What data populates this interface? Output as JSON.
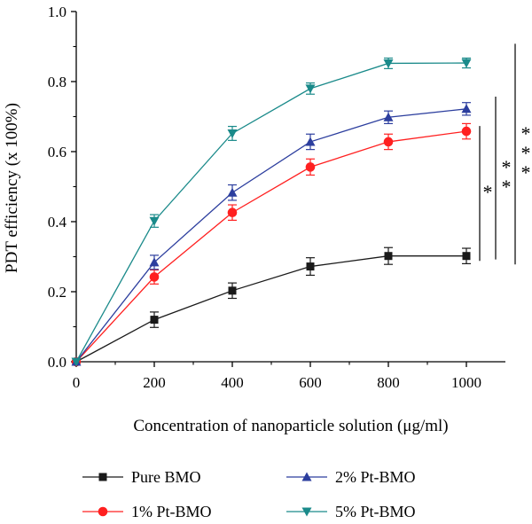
{
  "chart_data": {
    "type": "line",
    "title": "",
    "xlabel": "Concentration of nanoparticle solution (μg/ml)",
    "ylabel": "PDT efficiency (x 100%)",
    "x": [
      0,
      200,
      400,
      600,
      800,
      1000
    ],
    "x_ticks": [
      "0",
      "200",
      "400",
      "600",
      "800",
      "1000"
    ],
    "y_ticks": [
      "0.0",
      "0.2",
      "0.4",
      "0.6",
      "0.8",
      "1.0"
    ],
    "xlim": [
      0,
      1100
    ],
    "ylim": [
      0,
      1.0
    ],
    "grid": false,
    "legend_position": "bottom",
    "series": [
      {
        "name": "Pure BMO",
        "color": "#1a1a1a",
        "marker": "square",
        "values": [
          0.0,
          0.12,
          0.203,
          0.272,
          0.302,
          0.302
        ],
        "errors": [
          0.0,
          0.022,
          0.022,
          0.025,
          0.024,
          0.022
        ]
      },
      {
        "name": "1% Pt-BMO",
        "color": "#ff2020",
        "marker": "circle",
        "values": [
          0.0,
          0.242,
          0.426,
          0.556,
          0.628,
          0.658
        ],
        "errors": [
          0.0,
          0.02,
          0.022,
          0.023,
          0.022,
          0.022
        ]
      },
      {
        "name": "2% Pt-BMO",
        "color": "#2c3e9e",
        "marker": "triangle-up",
        "values": [
          0.0,
          0.284,
          0.483,
          0.628,
          0.698,
          0.722
        ],
        "errors": [
          0.0,
          0.02,
          0.022,
          0.022,
          0.018,
          0.018
        ]
      },
      {
        "name": "5% Pt-BMO",
        "color": "#1a8a8a",
        "marker": "triangle-down",
        "values": [
          0.0,
          0.402,
          0.652,
          0.78,
          0.852,
          0.853
        ],
        "errors": [
          0.0,
          0.018,
          0.02,
          0.016,
          0.015,
          0.014
        ]
      }
    ],
    "annotations": [
      {
        "text": "*",
        "comparison": "1% Pt-BMO vs Pure BMO"
      },
      {
        "text": "**",
        "comparison": "2% Pt-BMO vs Pure BMO"
      },
      {
        "text": "***",
        "comparison": "5% Pt-BMO vs Pure BMO"
      }
    ]
  }
}
